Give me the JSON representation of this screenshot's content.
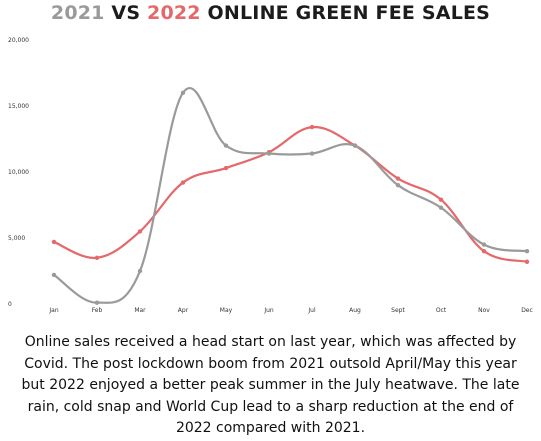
{
  "title": {
    "part1": "2021",
    "part2": " VS ",
    "part3": "2022",
    "part4": " ONLINE GREEN FEE SALES"
  },
  "colors": {
    "series_2021": "#9a9a9a",
    "series_2022": "#e5686b"
  },
  "chart_data": {
    "type": "line",
    "categories": [
      "Jan",
      "Feb",
      "Mar",
      "Apr",
      "May",
      "Jun",
      "Jul",
      "Aug",
      "Sept",
      "Oct",
      "Nov",
      "Dec"
    ],
    "series": [
      {
        "name": "2021",
        "color": "#9a9a9a",
        "values": [
          2200,
          100,
          2500,
          16000,
          12000,
          11400,
          11400,
          12000,
          9000,
          7300,
          4500,
          4000
        ]
      },
      {
        "name": "2022",
        "color": "#e5686b",
        "values": [
          4700,
          3500,
          5500,
          9200,
          10300,
          11500,
          13400,
          12000,
          9500,
          7900,
          4000,
          3200
        ]
      }
    ],
    "yticks": [
      "0",
      "5,000",
      "10,000",
      "15,000",
      "20,000"
    ],
    "ylim": [
      0,
      20000
    ],
    "grid": false,
    "smooth": true
  },
  "caption": "Online sales received a head start on last year, which was affected by Covid. The post lockdown boom from 2021 outsold April/May this year but 2022 enjoyed a better peak summer in the July heatwave. The late rain, cold snap and World Cup lead to a sharp reduction at the end of 2022 compared with 2021."
}
